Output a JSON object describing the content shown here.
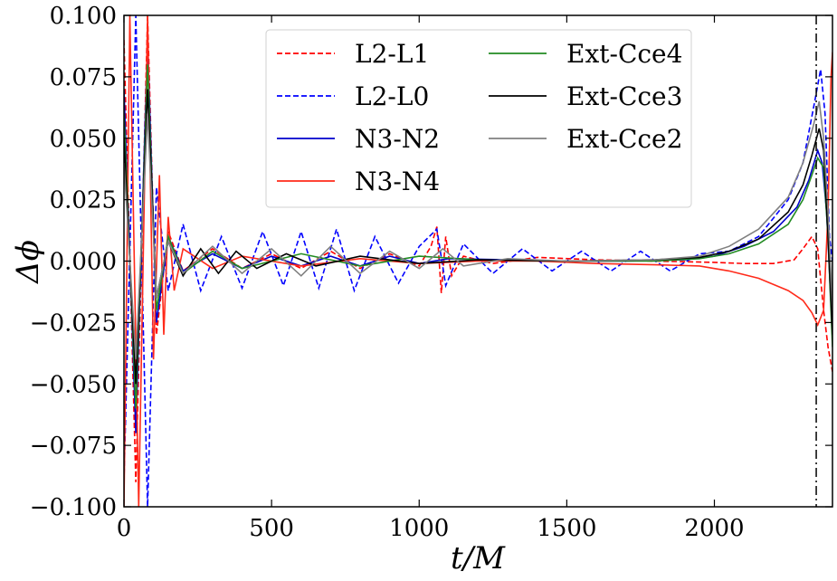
{
  "chart_data": {
    "type": "line",
    "title": "",
    "xlabel": "t/M",
    "ylabel": "Δϕ",
    "xlim": [
      0,
      2400
    ],
    "ylim": [
      -0.1,
      0.1
    ],
    "x_ticks": [
      0,
      500,
      1000,
      1500,
      2000
    ],
    "x_tick_labels": [
      "0",
      "500",
      "1000",
      "1500",
      "2000"
    ],
    "y_ticks": [
      -0.1,
      -0.075,
      -0.05,
      -0.025,
      0,
      0.025,
      0.05,
      0.075,
      0.1
    ],
    "y_tick_labels": [
      "−0.100",
      "−0.075",
      "−0.050",
      "−0.025",
      "0.000",
      "0.025",
      "0.050",
      "0.075",
      "0.100"
    ],
    "grid": false,
    "legend_position": "top-center",
    "vertical_line": {
      "x": 2345,
      "style": "dashdot",
      "color": "#000000"
    },
    "series": [
      {
        "name": "L2-L1",
        "color": "#ff0000",
        "dash": "dashed",
        "points": [
          [
            0,
            0.09
          ],
          [
            40,
            -0.09
          ],
          [
            80,
            0.1
          ],
          [
            110,
            -0.03
          ],
          [
            150,
            0.012
          ],
          [
            200,
            -0.004
          ],
          [
            300,
            0.005
          ],
          [
            400,
            -0.003
          ],
          [
            500,
            0.003
          ],
          [
            600,
            -0.003
          ],
          [
            700,
            0.004
          ],
          [
            800,
            -0.003
          ],
          [
            900,
            0.003
          ],
          [
            1000,
            -0.002
          ],
          [
            1040,
            0.006
          ],
          [
            1060,
            0.014
          ],
          [
            1075,
            -0.013
          ],
          [
            1090,
            0.01
          ],
          [
            1110,
            -0.006
          ],
          [
            1150,
            0.002
          ],
          [
            1250,
            -0.001
          ],
          [
            1400,
            0.0015
          ],
          [
            1600,
            0.0005
          ],
          [
            1800,
            0.0
          ],
          [
            2000,
            -0.0005
          ],
          [
            2100,
            -0.001
          ],
          [
            2200,
            -0.001
          ],
          [
            2270,
            0.0005
          ],
          [
            2300,
            0.005
          ],
          [
            2330,
            0.01
          ],
          [
            2350,
            0.005
          ],
          [
            2370,
            -0.02
          ],
          [
            2385,
            -0.035
          ],
          [
            2400,
            -0.045
          ]
        ]
      },
      {
        "name": "L2-L0",
        "color": "#0000ff",
        "dash": "dashed",
        "points": [
          [
            0,
            -0.09
          ],
          [
            40,
            0.1
          ],
          [
            80,
            -0.1
          ],
          [
            110,
            0.03
          ],
          [
            150,
            -0.012
          ],
          [
            200,
            0.015
          ],
          [
            260,
            -0.012
          ],
          [
            330,
            0.01
          ],
          [
            400,
            -0.011
          ],
          [
            470,
            0.012
          ],
          [
            540,
            -0.01
          ],
          [
            600,
            0.012
          ],
          [
            660,
            -0.011
          ],
          [
            720,
            0.013
          ],
          [
            780,
            -0.012
          ],
          [
            850,
            0.01
          ],
          [
            930,
            -0.009
          ],
          [
            1000,
            0.006
          ],
          [
            1060,
            0.013
          ],
          [
            1090,
            -0.01
          ],
          [
            1150,
            0.007
          ],
          [
            1250,
            -0.005
          ],
          [
            1350,
            0.005
          ],
          [
            1450,
            -0.004
          ],
          [
            1550,
            0.004
          ],
          [
            1650,
            -0.004
          ],
          [
            1750,
            0.004
          ],
          [
            1850,
            -0.004
          ],
          [
            1950,
            0.003
          ],
          [
            2050,
            0.004
          ],
          [
            2150,
            0.01
          ],
          [
            2250,
            0.025
          ],
          [
            2300,
            0.04
          ],
          [
            2340,
            0.065
          ],
          [
            2360,
            0.078
          ],
          [
            2375,
            0.06
          ],
          [
            2390,
            0.01
          ],
          [
            2400,
            0.0
          ]
        ]
      },
      {
        "name": "N3-N2",
        "color": "#0000cc",
        "dash": "solid",
        "points": [
          [
            0,
            0.07
          ],
          [
            40,
            -0.07
          ],
          [
            80,
            0.09
          ],
          [
            110,
            -0.025
          ],
          [
            150,
            0.01
          ],
          [
            200,
            -0.004
          ],
          [
            300,
            0.003
          ],
          [
            400,
            -0.003
          ],
          [
            500,
            0.002
          ],
          [
            600,
            -0.002
          ],
          [
            700,
            0.002
          ],
          [
            800,
            -0.002
          ],
          [
            900,
            0.002
          ],
          [
            1000,
            -0.001
          ],
          [
            1100,
            0.001
          ],
          [
            1300,
            0.0005
          ],
          [
            1500,
            0.0
          ],
          [
            1700,
            0.0
          ],
          [
            1900,
            0.0005
          ],
          [
            2000,
            0.002
          ],
          [
            2100,
            0.006
          ],
          [
            2200,
            0.012
          ],
          [
            2280,
            0.022
          ],
          [
            2320,
            0.033
          ],
          [
            2350,
            0.045
          ],
          [
            2365,
            0.04
          ],
          [
            2380,
            0.02
          ],
          [
            2400,
            -0.03
          ]
        ]
      },
      {
        "name": "N3-N4",
        "color": "#ff2a1a",
        "dash": "solid",
        "points": [
          [
            0,
            -0.1
          ],
          [
            20,
            0.1
          ],
          [
            50,
            -0.1
          ],
          [
            80,
            0.1
          ],
          [
            100,
            -0.04
          ],
          [
            120,
            0.035
          ],
          [
            135,
            -0.03
          ],
          [
            150,
            0.018
          ],
          [
            170,
            -0.012
          ],
          [
            200,
            0.005
          ],
          [
            300,
            -0.003
          ],
          [
            400,
            0.002
          ],
          [
            600,
            -0.002
          ],
          [
            800,
            0.001
          ],
          [
            1000,
            -0.001
          ],
          [
            1200,
            0.0
          ],
          [
            1400,
            0.0
          ],
          [
            1600,
            -0.001
          ],
          [
            1800,
            -0.0015
          ],
          [
            1950,
            -0.002
          ],
          [
            2050,
            -0.004
          ],
          [
            2150,
            -0.007
          ],
          [
            2250,
            -0.012
          ],
          [
            2300,
            -0.016
          ],
          [
            2330,
            -0.021
          ],
          [
            2350,
            -0.026
          ],
          [
            2370,
            -0.02
          ],
          [
            2385,
            0.02
          ],
          [
            2395,
            0.075
          ],
          [
            2400,
            0.085
          ]
        ]
      },
      {
        "name": "Ext-Cce4",
        "color": "#228b22",
        "dash": "solid",
        "points": [
          [
            0,
            0.06
          ],
          [
            40,
            -0.06
          ],
          [
            80,
            0.08
          ],
          [
            110,
            -0.02
          ],
          [
            150,
            0.01
          ],
          [
            200,
            -0.005
          ],
          [
            300,
            0.004
          ],
          [
            400,
            -0.003
          ],
          [
            600,
            0.003
          ],
          [
            800,
            -0.002
          ],
          [
            1000,
            0.002
          ],
          [
            1200,
            0.0005
          ],
          [
            1500,
            0.0
          ],
          [
            1800,
            0.0
          ],
          [
            1950,
            0.001
          ],
          [
            2050,
            0.003
          ],
          [
            2150,
            0.007
          ],
          [
            2250,
            0.015
          ],
          [
            2300,
            0.025
          ],
          [
            2330,
            0.035
          ],
          [
            2350,
            0.042
          ],
          [
            2370,
            0.038
          ],
          [
            2385,
            0.01
          ],
          [
            2400,
            -0.035
          ]
        ]
      },
      {
        "name": "Ext-Cce3",
        "color": "#000000",
        "dash": "solid",
        "points": [
          [
            0,
            0.05
          ],
          [
            40,
            -0.05
          ],
          [
            80,
            0.07
          ],
          [
            110,
            -0.015
          ],
          [
            150,
            0.008
          ],
          [
            200,
            -0.006
          ],
          [
            260,
            0.005
          ],
          [
            320,
            -0.005
          ],
          [
            380,
            0.004
          ],
          [
            450,
            -0.003
          ],
          [
            550,
            0.003
          ],
          [
            650,
            -0.002
          ],
          [
            800,
            0.002
          ],
          [
            1000,
            -0.001
          ],
          [
            1200,
            0.0005
          ],
          [
            1500,
            0.0
          ],
          [
            1800,
            0.0005
          ],
          [
            1950,
            0.0015
          ],
          [
            2050,
            0.004
          ],
          [
            2150,
            0.009
          ],
          [
            2250,
            0.02
          ],
          [
            2300,
            0.031
          ],
          [
            2330,
            0.043
          ],
          [
            2355,
            0.054
          ],
          [
            2370,
            0.045
          ],
          [
            2385,
            0.01
          ],
          [
            2400,
            -0.03
          ]
        ]
      },
      {
        "name": "Ext-Cce2",
        "color": "#808080",
        "dash": "solid",
        "points": [
          [
            0,
            0.04
          ],
          [
            40,
            -0.04
          ],
          [
            80,
            0.06
          ],
          [
            110,
            -0.015
          ],
          [
            150,
            0.008
          ],
          [
            200,
            -0.005
          ],
          [
            300,
            0.006
          ],
          [
            400,
            -0.005
          ],
          [
            500,
            0.005
          ],
          [
            600,
            -0.006
          ],
          [
            700,
            0.006
          ],
          [
            800,
            -0.005
          ],
          [
            900,
            0.004
          ],
          [
            1000,
            -0.003
          ],
          [
            1080,
            0.005
          ],
          [
            1150,
            -0.002
          ],
          [
            1300,
            0.001
          ],
          [
            1500,
            0.0
          ],
          [
            1800,
            0.0005
          ],
          [
            1950,
            0.002
          ],
          [
            2050,
            0.006
          ],
          [
            2150,
            0.013
          ],
          [
            2250,
            0.026
          ],
          [
            2300,
            0.04
          ],
          [
            2335,
            0.055
          ],
          [
            2355,
            0.065
          ],
          [
            2370,
            0.05
          ],
          [
            2385,
            0.02
          ],
          [
            2400,
            -0.02
          ]
        ]
      }
    ]
  }
}
